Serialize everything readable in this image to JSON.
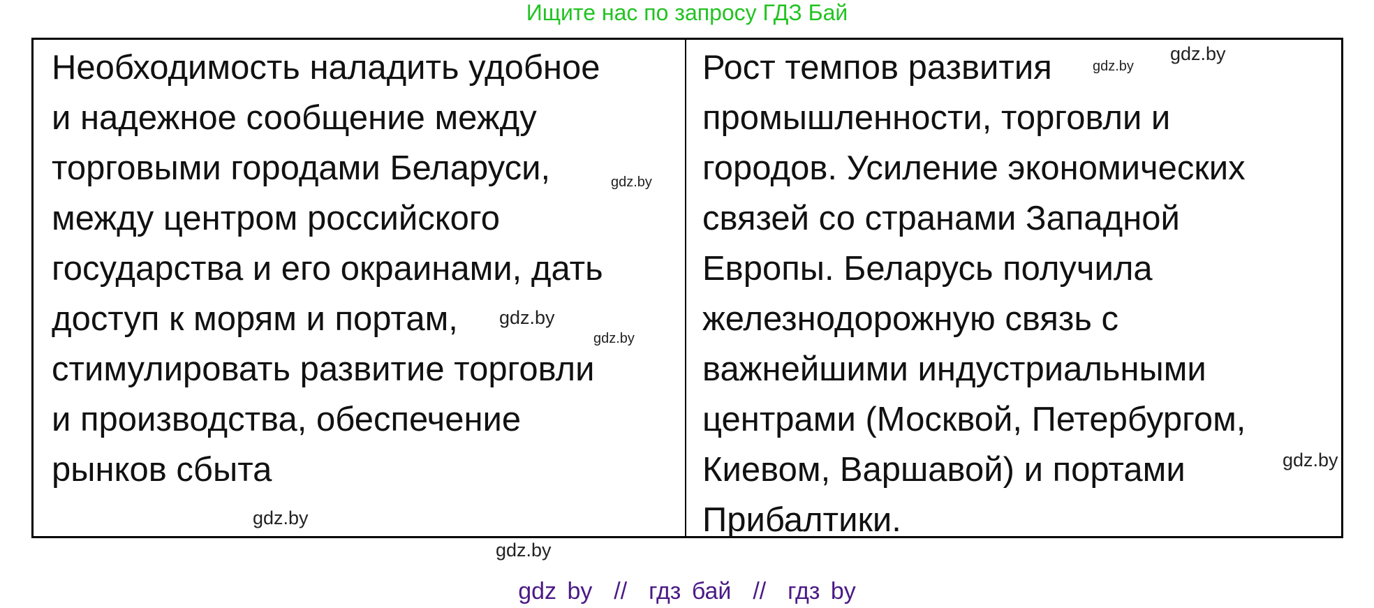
{
  "header": {
    "title": "Ищите нас по запросу ГДЗ Бай",
    "title_color": "#22c322"
  },
  "table": {
    "left_lines": [
      "Необходимость наладить удобное",
      "и надежное сообщение между",
      "торговыми городами Беларуси,",
      "между центром российского",
      "государства и его окраинами, дать",
      "доступ к морям и портам,",
      "стимулировать развитие торговли",
      "и производства, обеспечение",
      "рынков сбыта"
    ],
    "right_lines": [
      "Рост темпов развития",
      "промышленности, торговли и",
      "городов. Усиление экономических",
      "связей со странами Западной",
      "Европы. Беларусь получила",
      "железнодорожную связь с",
      "важнейшими индустриальными",
      "центрами (Москвой, Петербургом,",
      "Киевом, Варшавой) и портами",
      "Прибалтики."
    ]
  },
  "watermarks": [
    "gdz.by",
    "gdz.by",
    "gdz.by",
    "gdz.by",
    "gdz.by",
    "gdz.by",
    "gdz.by",
    "gdz.by"
  ],
  "footer": {
    "text": "gdz by  //  гдз бай  //  гдз by",
    "color": "#4b1a86"
  }
}
